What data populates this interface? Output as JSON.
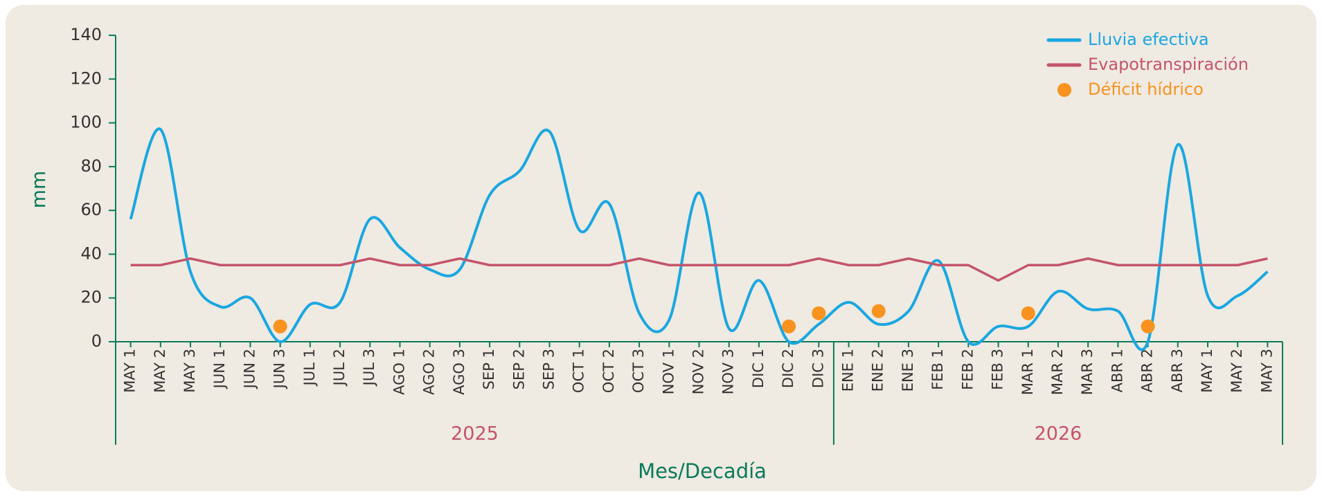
{
  "chart_data": {
    "type": "line",
    "y_axis_label": "mm",
    "x_axis_label": "Mes/Decadía",
    "categories": [
      "MAY 1",
      "MAY 2",
      "MAY 3",
      "JUN 1",
      "JUN 2",
      "JUN 3",
      "JUL 1",
      "JUL 2",
      "JUL 3",
      "AGO 1",
      "AGO 2",
      "AGO 3",
      "SEP 1",
      "SEP 2",
      "SEP 3",
      "OCT 1",
      "OCT 2",
      "OCT 3",
      "NOV 1",
      "NOV 2",
      "NOV 3",
      "DIC 1",
      "DIC 2",
      "DIC 3",
      "ENE 1",
      "ENE 2",
      "ENE 3",
      "FEB 1",
      "FEB 2",
      "FEB 3",
      "MAR 1",
      "MAR 2",
      "MAR 3",
      "ABR 1",
      "ABR 2",
      "ABR 3",
      "MAY 1",
      "MAY 2",
      "MAY 3"
    ],
    "category_groups": [
      {
        "label": "2025",
        "first": 0,
        "last": 23
      },
      {
        "label": "2026",
        "first": 24,
        "last": 38
      }
    ],
    "series": [
      {
        "name": "Lluvia efectiva",
        "color": "#1aa7e0",
        "style": "smooth-line",
        "values": [
          56,
          97,
          32,
          16,
          20,
          0,
          17,
          18,
          56,
          43,
          33,
          33,
          67,
          78,
          96,
          51,
          63,
          13,
          10,
          68,
          6,
          28,
          0,
          8,
          18,
          8,
          14,
          37,
          0,
          7,
          7,
          23,
          15,
          14,
          0,
          90,
          21,
          21,
          32
        ]
      },
      {
        "name": "Evapotranspiración",
        "color": "#c4546a",
        "style": "line",
        "values": [
          35,
          35,
          38,
          35,
          35,
          35,
          35,
          35,
          38,
          35,
          35,
          38,
          35,
          35,
          35,
          35,
          35,
          38,
          35,
          35,
          35,
          35,
          35,
          38,
          35,
          35,
          38,
          35,
          35,
          28,
          35,
          35,
          38,
          35,
          35,
          35,
          35,
          35,
          38
        ]
      },
      {
        "name": "Déficit hídrico",
        "color": "#f7931e",
        "style": "points",
        "values": [
          null,
          null,
          null,
          null,
          null,
          7,
          null,
          null,
          null,
          null,
          null,
          null,
          null,
          null,
          null,
          null,
          null,
          null,
          null,
          null,
          null,
          null,
          7,
          13,
          null,
          14,
          null,
          null,
          null,
          null,
          13,
          null,
          null,
          null,
          7,
          null,
          null,
          null,
          null
        ]
      }
    ],
    "ylim": [
      0,
      140
    ],
    "yticks": [
      0,
      20,
      40,
      60,
      80,
      100,
      120,
      140
    ],
    "legend": "upper right",
    "axis_color": "#0a7a5a"
  }
}
